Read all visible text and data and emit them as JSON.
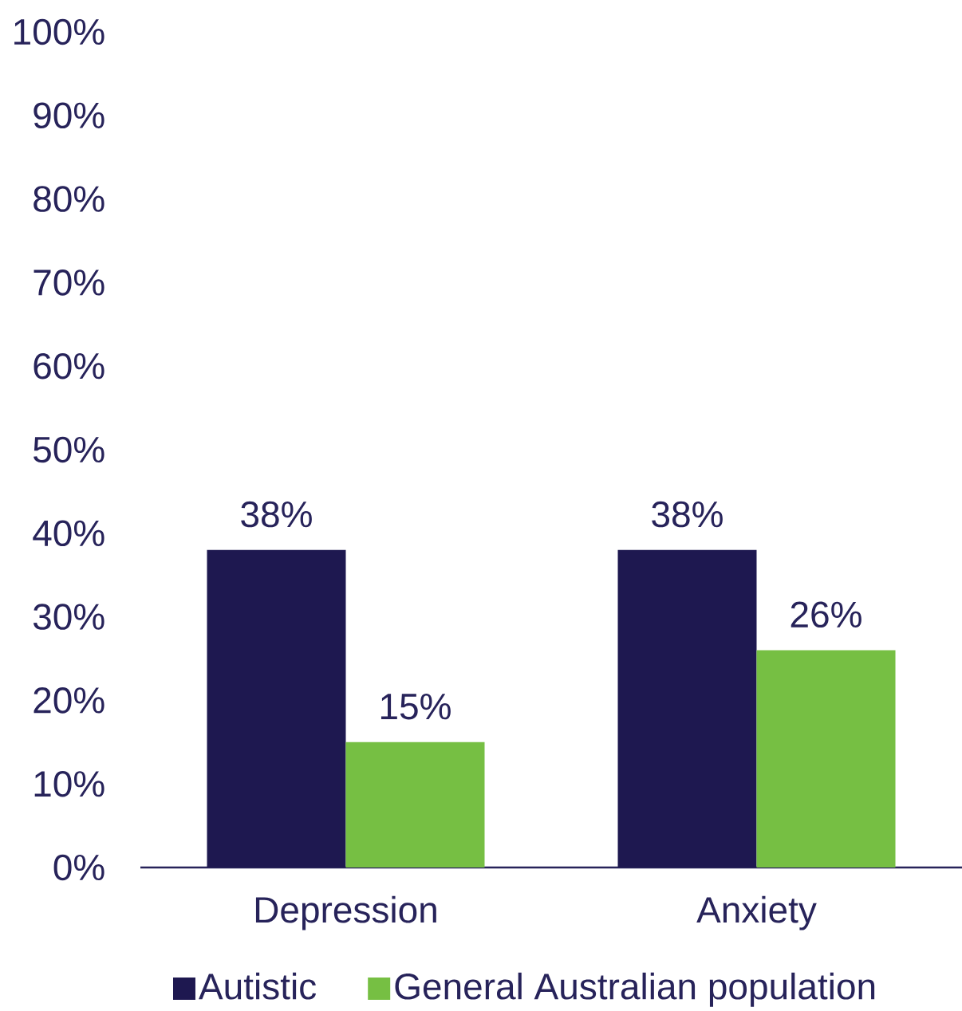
{
  "chart_data": {
    "type": "bar",
    "categories": [
      "Depression",
      "Anxiety"
    ],
    "series": [
      {
        "name": "Autistic",
        "color": "#1e1850",
        "values": [
          38,
          38
        ],
        "value_labels": [
          "38%",
          "38%"
        ]
      },
      {
        "name": "General Australian population",
        "color": "#76bf43",
        "values": [
          15,
          26
        ],
        "value_labels": [
          "15%",
          "26%"
        ]
      }
    ],
    "ylim": [
      0,
      100
    ],
    "yticks": [
      {
        "value": 0,
        "label": "0%"
      },
      {
        "value": 10,
        "label": "10%"
      },
      {
        "value": 20,
        "label": "20%"
      },
      {
        "value": 30,
        "label": "30%"
      },
      {
        "value": 40,
        "label": "40%"
      },
      {
        "value": 50,
        "label": "50%"
      },
      {
        "value": 60,
        "label": "60%"
      },
      {
        "value": 70,
        "label": "70%"
      },
      {
        "value": 80,
        "label": "80%"
      },
      {
        "value": 90,
        "label": "90%"
      },
      {
        "value": 100,
        "label": "100%"
      }
    ],
    "legend": "bottom"
  }
}
